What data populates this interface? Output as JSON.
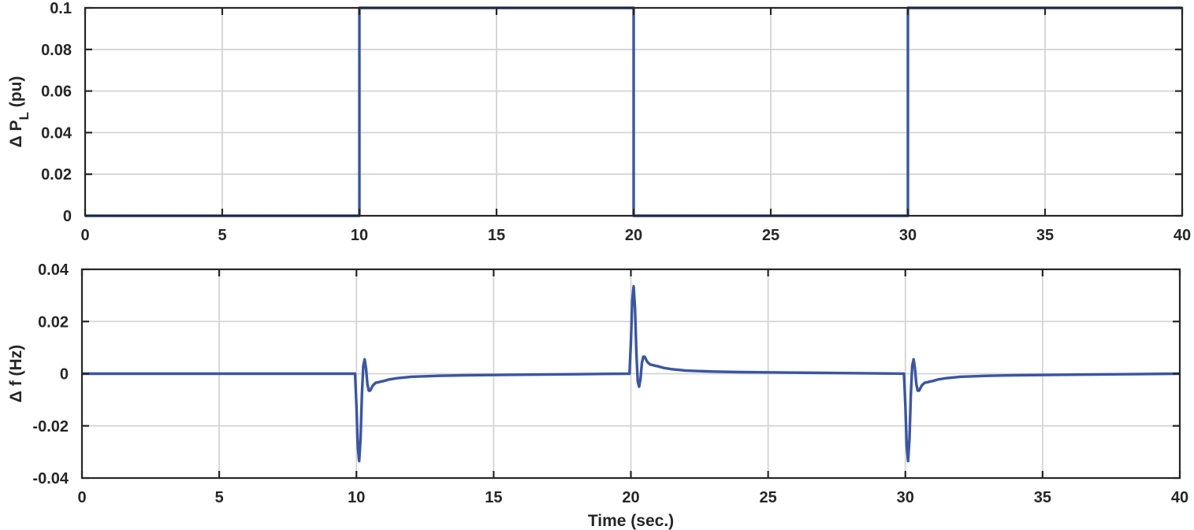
{
  "colors": {
    "series": "#3a55a4",
    "axes": "#262626",
    "grid": "#d4d4d4"
  },
  "chart_data": [
    {
      "type": "line",
      "ylabel": {
        "main": "Δ P",
        "subscript": "L",
        "suffix": " (pu)"
      },
      "xlabel": "",
      "xlim": [
        0,
        40
      ],
      "ylim": [
        0,
        0.1
      ],
      "xticks": [
        "0",
        "5",
        "10",
        "15",
        "20",
        "25",
        "30",
        "35",
        "40"
      ],
      "yticks": [
        "0",
        "0.02",
        "0.04",
        "0.06",
        "0.08",
        "0.1"
      ],
      "grid": true,
      "series": [
        {
          "x": [
            0,
            10,
            10,
            20,
            20,
            30,
            30,
            40
          ],
          "y": [
            0,
            0,
            0.1,
            0.1,
            0,
            0,
            0.1,
            0.1
          ]
        }
      ]
    },
    {
      "type": "line",
      "ylabel": {
        "main": "Δ f (Hz)"
      },
      "xlabel": "Time (sec.)",
      "xlim": [
        0,
        40
      ],
      "ylim": [
        -0.04,
        0.04
      ],
      "xticks": [
        "0",
        "5",
        "10",
        "15",
        "20",
        "25",
        "30",
        "35",
        "40"
      ],
      "yticks": [
        "-0.04",
        "-0.02",
        "0",
        "0.02",
        "0.04"
      ],
      "grid": true,
      "series": [
        {
          "x": [
            0,
            9.95,
            10.0,
            10.05,
            10.1,
            10.15,
            10.2,
            10.25,
            10.3,
            10.35,
            10.4,
            10.45,
            10.5,
            10.55,
            10.6,
            10.7,
            10.8,
            10.9,
            11.0,
            11.2,
            11.5,
            12.0,
            13.0,
            14.0,
            16.0,
            18.0,
            19.95,
            20.0,
            20.05,
            20.1,
            20.15,
            20.2,
            20.25,
            20.3,
            20.35,
            20.4,
            20.45,
            20.5,
            20.55,
            20.6,
            20.7,
            20.8,
            20.9,
            21.0,
            21.2,
            21.5,
            22.0,
            23.0,
            24.0,
            26.0,
            28.0,
            29.95,
            30.0,
            30.05,
            30.1,
            30.15,
            30.2,
            30.25,
            30.3,
            30.35,
            30.4,
            30.45,
            30.5,
            30.55,
            30.6,
            30.7,
            30.8,
            30.9,
            31.0,
            31.2,
            31.5,
            32.0,
            33.0,
            34.0,
            36.0,
            38.0,
            40.0
          ],
          "y": [
            0,
            0,
            -0.012,
            -0.028,
            -0.0335,
            -0.025,
            -0.008,
            0.003,
            0.0055,
            0.002,
            -0.004,
            -0.0065,
            -0.0065,
            -0.0055,
            -0.0045,
            -0.0035,
            -0.0033,
            -0.003,
            -0.0028,
            -0.0022,
            -0.0017,
            -0.0012,
            -0.0008,
            -0.0006,
            -0.0004,
            -0.0002,
            0,
            0.012,
            0.028,
            0.0335,
            0.025,
            0.008,
            -0.003,
            -0.005,
            -0.002,
            0.004,
            0.0065,
            0.0065,
            0.0055,
            0.0045,
            0.0035,
            0.0033,
            0.003,
            0.0028,
            0.0022,
            0.0017,
            0.0012,
            0.0008,
            0.0006,
            0.0004,
            0.0002,
            0,
            -0.012,
            -0.028,
            -0.0335,
            -0.025,
            -0.008,
            0.003,
            0.0055,
            0.002,
            -0.004,
            -0.0065,
            -0.0065,
            -0.0055,
            -0.0045,
            -0.0035,
            -0.0033,
            -0.003,
            -0.0028,
            -0.0022,
            -0.0017,
            -0.0012,
            -0.0008,
            -0.0006,
            -0.0004,
            -0.0002,
            0
          ]
        }
      ]
    }
  ]
}
